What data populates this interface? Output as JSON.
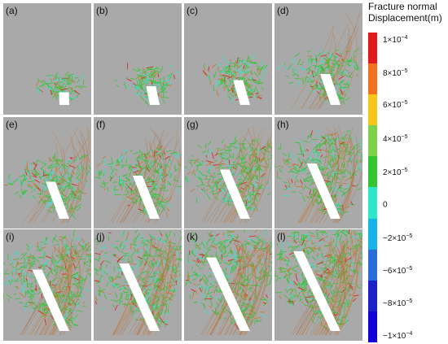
{
  "colorbar": {
    "title_line1": "Fracture normal",
    "title_line2": "Displacement(m)",
    "ticks": [
      {
        "base": "1×10",
        "exp": "−4",
        "value": 0.0001
      },
      {
        "base": "8×10",
        "exp": "−5",
        "value": 8e-05
      },
      {
        "base": "6×10",
        "exp": "−5",
        "value": 6e-05
      },
      {
        "base": "4×10",
        "exp": "−5",
        "value": 4e-05
      },
      {
        "base": "2×10",
        "exp": "−5",
        "value": 2e-05
      },
      {
        "base": "0",
        "exp": "",
        "value": 0
      },
      {
        "base": "−2×10",
        "exp": "−5",
        "value": -2e-05
      },
      {
        "base": "−6×10",
        "exp": "−5",
        "value": -6e-05
      },
      {
        "base": "−8×10",
        "exp": "−5",
        "value": -8e-05
      },
      {
        "base": "−1×10",
        "exp": "−4",
        "value": -0.0001
      }
    ],
    "colors": [
      "#e31a1c",
      "#f2711c",
      "#f6c619",
      "#7fd14a",
      "#33c633",
      "#2ee6c8",
      "#19b4e6",
      "#2a6cd8",
      "#1a22c8",
      "#1200d8"
    ]
  },
  "panels": [
    {
      "label": "(a)",
      "stage": 1
    },
    {
      "label": "(b)",
      "stage": 2
    },
    {
      "label": "(c)",
      "stage": 3
    },
    {
      "label": "(d)",
      "stage": 4
    },
    {
      "label": "(e)",
      "stage": 5
    },
    {
      "label": "(f)",
      "stage": 6
    },
    {
      "label": "(g)",
      "stage": 7
    },
    {
      "label": "(h)",
      "stage": 8
    },
    {
      "label": "(i)",
      "stage": 9
    },
    {
      "label": "(j)",
      "stage": 10
    },
    {
      "label": "(k)",
      "stage": 11
    },
    {
      "label": "(l)",
      "stage": 12
    }
  ]
}
